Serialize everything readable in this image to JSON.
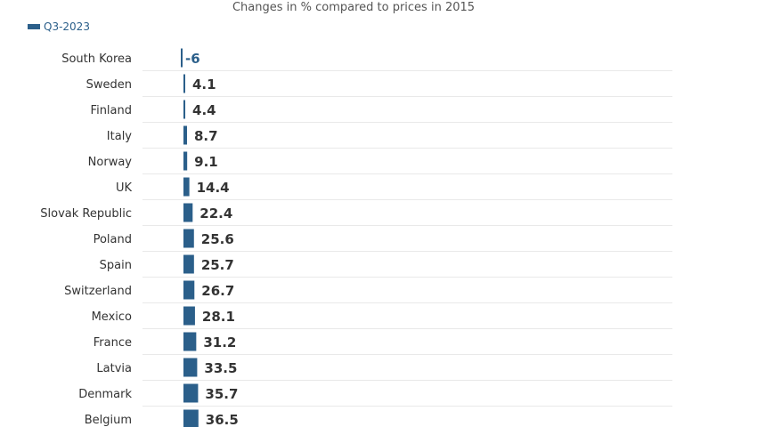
{
  "chart_data": {
    "type": "bar",
    "orientation": "horizontal",
    "title": "Changes in % compared to prices in 2015",
    "legend_position": "top-left",
    "grid": true,
    "series": [
      {
        "name": "Q3-2023",
        "color": "#2b5f8a",
        "values": [
          -6,
          4.1,
          4.4,
          8.7,
          9.1,
          14.4,
          22.4,
          25.6,
          25.7,
          26.7,
          28.1,
          31.2,
          33.5,
          35.7,
          36.5
        ],
        "value_labels": [
          "-6",
          "4.1",
          "4.4",
          "8.7",
          "9.1",
          "14.4",
          "22.4",
          "25.6",
          "25.7",
          "26.7",
          "28.1",
          "31.2",
          "33.5",
          "35.7",
          "36.5"
        ]
      }
    ],
    "categories": [
      "South Korea",
      "Sweden",
      "Finland",
      "Italy",
      "Norway",
      "UK",
      "Slovak Republic",
      "Poland",
      "Spain",
      "Switzerland",
      "Mexico",
      "France",
      "Latvia",
      "Denmark",
      "Belgium"
    ],
    "xlim": [
      -6,
      1200
    ]
  }
}
